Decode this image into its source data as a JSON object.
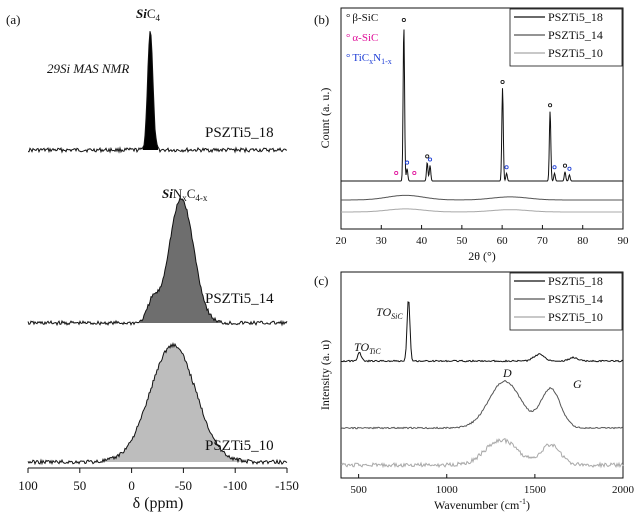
{
  "panel_a": {
    "label": "(a)",
    "technique": "29Si MAS NMR",
    "peak1": {
      "prefix": "Si",
      "rest": "C",
      "sub": "4"
    },
    "peak2": {
      "prefix": "Si",
      "rest": "N",
      "sub1": "x",
      "mid": "C",
      "sub2": "4-x"
    },
    "xlabel": "δ (ppm)",
    "xticks": [
      "100",
      "50",
      "0",
      "-50",
      "-100",
      "-150"
    ],
    "samples": [
      "PSZTi5_18",
      "PSZTi5_14",
      "PSZTi5_10"
    ]
  },
  "panel_b": {
    "label": "(b)",
    "ylabel": "Count (a. u.)",
    "xlabel": "2θ (°)",
    "xticks": [
      "20",
      "30",
      "40",
      "50",
      "60",
      "70",
      "80",
      "90"
    ],
    "markers": [
      {
        "symbol": "°",
        "text": "β-SiC",
        "color": "#111111"
      },
      {
        "symbol": "°",
        "text": "α-SiC",
        "color": "#e0109a"
      },
      {
        "symbol": "°",
        "text": "TiC",
        "sub1": "x",
        "mid": "N",
        "sub2": "1-x",
        "color": "#1f3fd6"
      }
    ],
    "legend": [
      {
        "name": "PSZTi5_18",
        "color": "#111111"
      },
      {
        "name": "PSZTi5_14",
        "color": "#555555"
      },
      {
        "name": "PSZTi5_10",
        "color": "#a8a8a8"
      }
    ]
  },
  "panel_c": {
    "label": "(c)",
    "ylabel": "Intensity (a. u)",
    "xlabel": "Wavenumber (cm",
    "xlabel_sup": "-1",
    "xlabel_end": ")",
    "xticks": [
      "500",
      "1000",
      "1500",
      "2000"
    ],
    "annotations": {
      "to_tic": "TO",
      "to_tic_sub": "TiC",
      "to_sic": "TO",
      "to_sic_sub": "SiC",
      "d": "D",
      "g": "G"
    },
    "legend": [
      {
        "name": "PSZTi5_18",
        "color": "#111111"
      },
      {
        "name": "PSZTi5_14",
        "color": "#555555"
      },
      {
        "name": "PSZTi5_10",
        "color": "#a8a8a8"
      }
    ]
  },
  "chart_data": [
    {
      "type": "area",
      "xlabel": "δ (ppm)",
      "xlim": [
        100,
        -150
      ],
      "series": [
        {
          "name": "PSZTi5_18",
          "peaks": [
            {
              "center": -18,
              "height": 1.0,
              "width": 2.5
            }
          ]
        },
        {
          "name": "PSZTi5_14",
          "peaks": [
            {
              "center": -48,
              "height": 1.0,
              "width": 12
            },
            {
              "center": -20,
              "height": 0.15,
              "width": 5
            }
          ]
        },
        {
          "name": "PSZTi5_10",
          "peaks": [
            {
              "center": -40,
              "height": 1.0,
              "width": 22
            }
          ]
        }
      ]
    },
    {
      "type": "line",
      "ylabel": "Count (a. u.)",
      "xlabel": "2θ (°)",
      "xlim": [
        20,
        90
      ],
      "series": [
        {
          "name": "PSZTi5_18",
          "peaks": [
            {
              "x": 35.6,
              "y": 1.0
            },
            {
              "x": 36.4,
              "y": 0.08
            },
            {
              "x": 41.4,
              "y": 0.12
            },
            {
              "x": 42.1,
              "y": 0.1
            },
            {
              "x": 60.1,
              "y": 0.6
            },
            {
              "x": 61.1,
              "y": 0.05
            },
            {
              "x": 71.9,
              "y": 0.45
            },
            {
              "x": 73.0,
              "y": 0.05
            },
            {
              "x": 75.6,
              "y": 0.06
            },
            {
              "x": 76.7,
              "y": 0.04
            }
          ]
        },
        {
          "name": "PSZTi5_14",
          "peaks": [
            {
              "x": 36,
              "y": 0.03
            },
            {
              "x": 62,
              "y": 0.02
            }
          ]
        },
        {
          "name": "PSZTi5_10",
          "peaks": [
            {
              "x": 36,
              "y": 0.02
            },
            {
              "x": 62,
              "y": 0.015
            }
          ]
        }
      ]
    },
    {
      "type": "line",
      "ylabel": "Intensity (a. u)",
      "xlabel": "Wavenumber (cm-1)",
      "xlim": [
        400,
        2000
      ],
      "series": [
        {
          "name": "PSZTi5_18",
          "peaks": [
            {
              "x": 505,
              "y": 0.1
            },
            {
              "x": 783,
              "y": 0.75
            },
            {
              "x": 1525,
              "y": 0.08
            },
            {
              "x": 1720,
              "y": 0.04
            }
          ]
        },
        {
          "name": "PSZTi5_14",
          "peaks": [
            {
              "x": 1330,
              "y": 0.6
            },
            {
              "x": 1590,
              "y": 0.5
            }
          ]
        },
        {
          "name": "PSZTi5_10",
          "peaks": [
            {
              "x": 1310,
              "y": 0.35
            },
            {
              "x": 1590,
              "y": 0.28
            }
          ]
        }
      ]
    }
  ]
}
